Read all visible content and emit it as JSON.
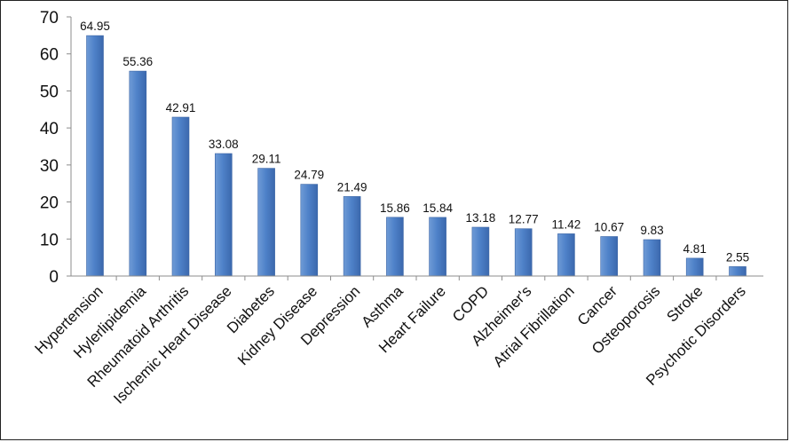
{
  "chart_data": {
    "type": "bar",
    "title": "",
    "xlabel": "",
    "ylabel": "",
    "ylim": [
      0,
      70
    ],
    "yticks": [
      0,
      10,
      20,
      30,
      40,
      50,
      60,
      70
    ],
    "grid": false,
    "legend": "none",
    "bar_color": "#4a7cc4",
    "data_labels": true,
    "categories": [
      "Hypertension",
      "Hylerlipidemia",
      "Rheumatoid Arthritis",
      "Ischemic Heart Disease",
      "Diabetes",
      "Kidney Disease",
      "Depression",
      "Asthma",
      "Heart Failure",
      "COPD",
      "Alzheimer's",
      "Atrial Fibrillation",
      "Cancer",
      "Osteoporosis",
      "Stroke",
      "Psychotic Disorders"
    ],
    "values": [
      64.95,
      55.36,
      42.91,
      33.08,
      29.11,
      24.79,
      21.49,
      15.86,
      15.84,
      13.18,
      12.77,
      11.42,
      10.67,
      9.83,
      4.81,
      2.55
    ],
    "value_labels": [
      "64.95",
      "55.36",
      "42.91",
      "33.08",
      "29.11",
      "24.79",
      "21.49",
      "15.86",
      "15.84",
      "13.18",
      "12.77",
      "11.42",
      "10.67",
      "9.83",
      "4.81",
      "2.55"
    ]
  }
}
